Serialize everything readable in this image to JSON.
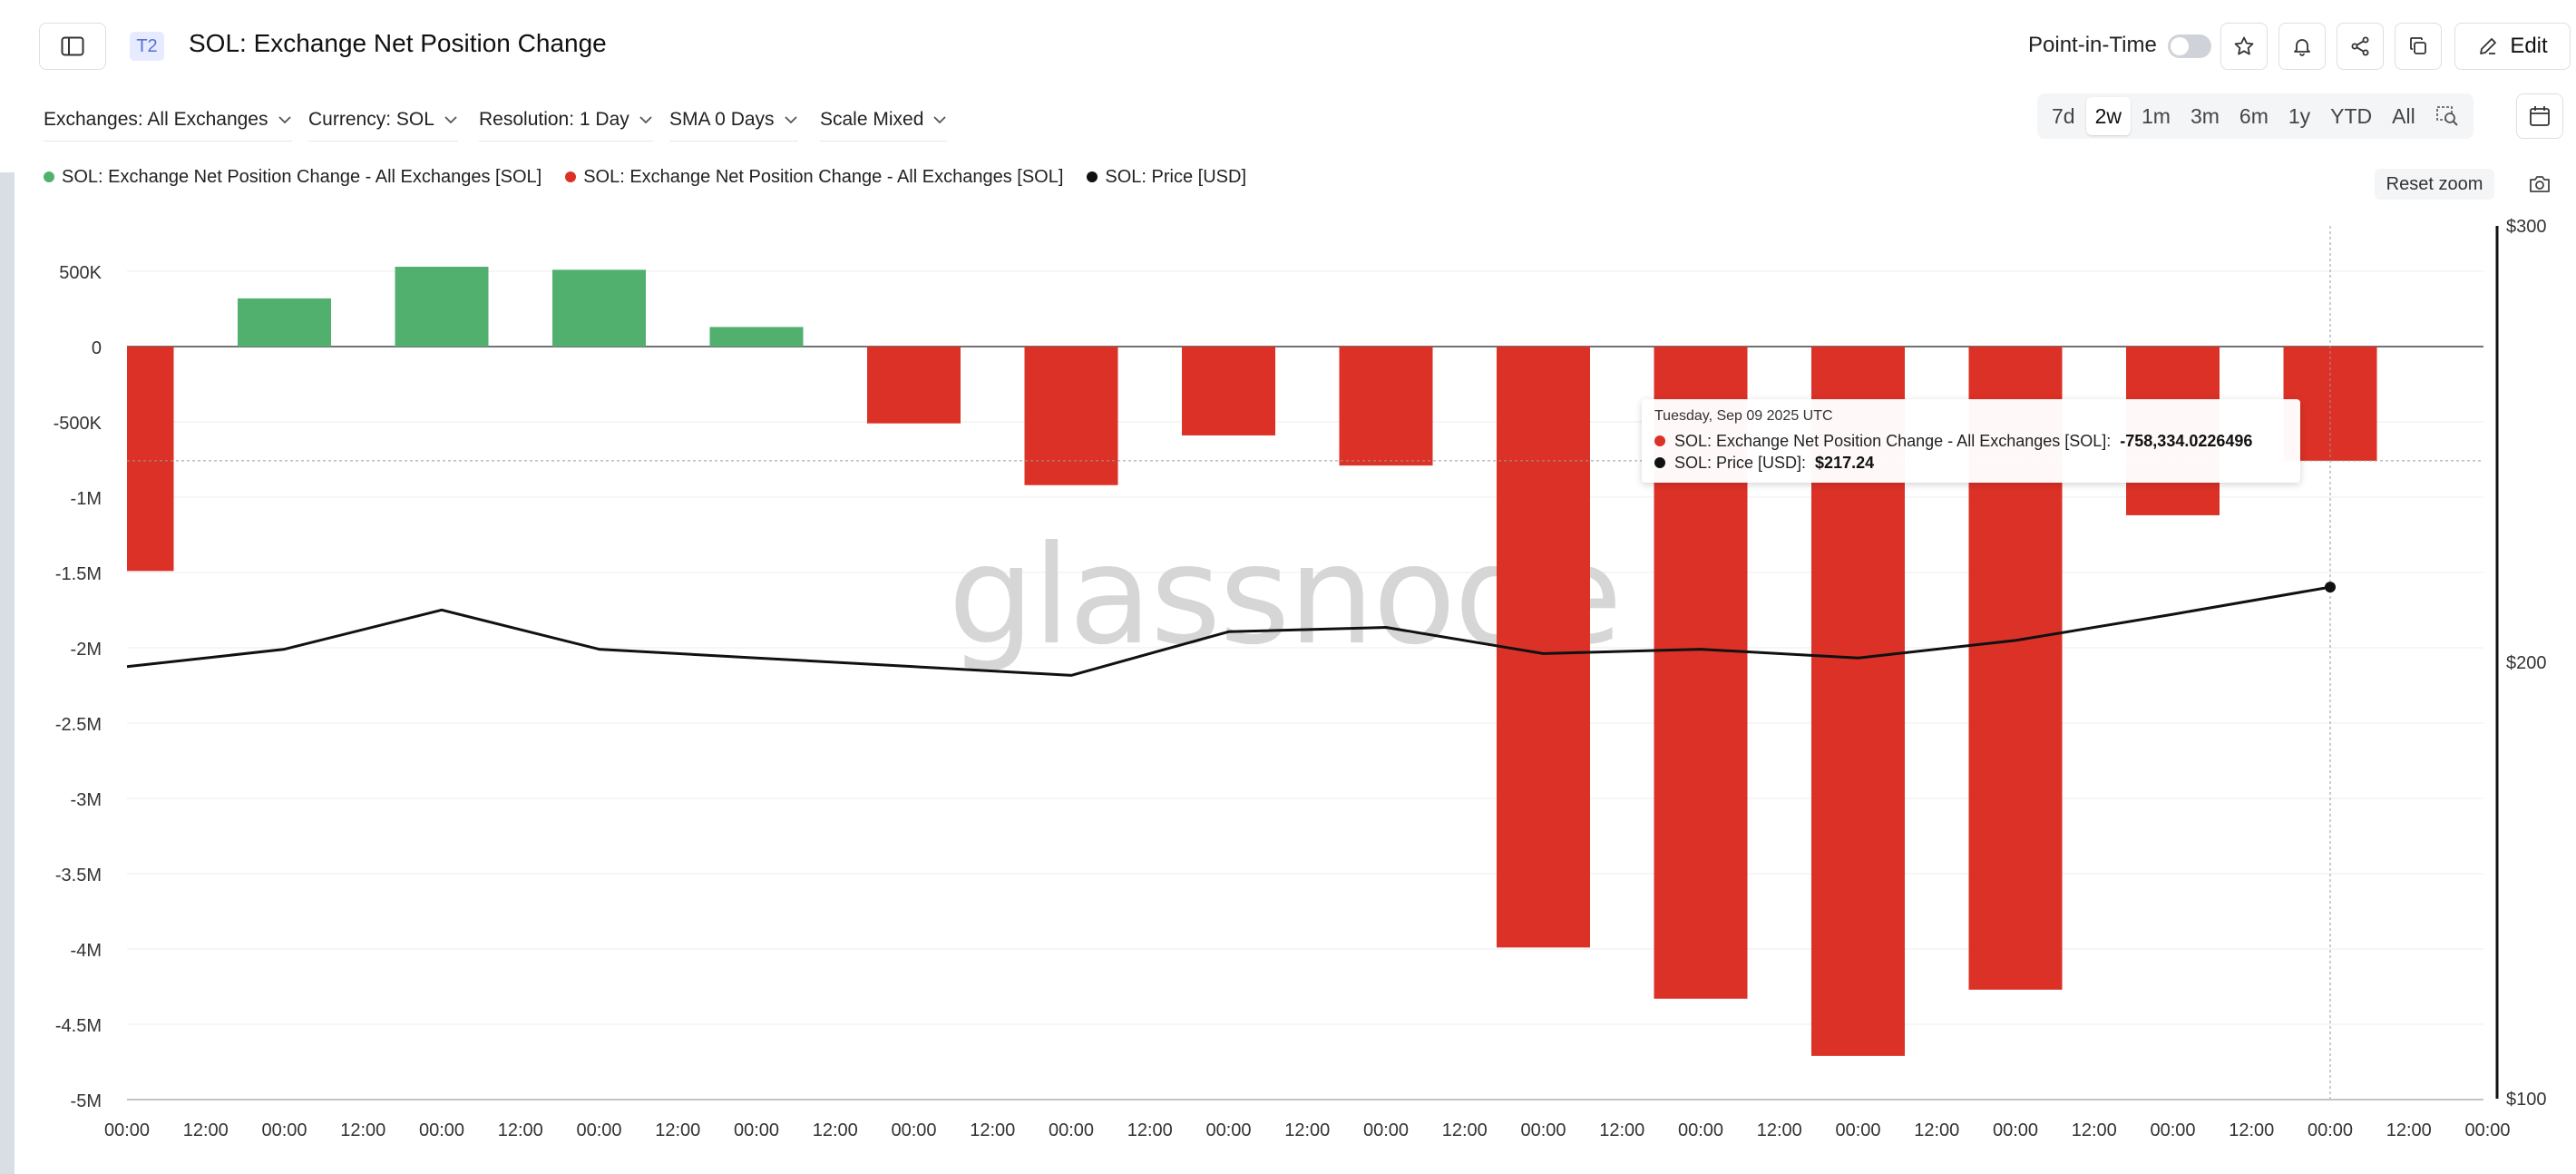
{
  "header": {
    "tier_badge": "T2",
    "title": "SOL: Exchange Net Position Change",
    "point_in_time_label": "Point-in-Time",
    "point_in_time_on": false,
    "edit_label": "Edit"
  },
  "toolbar": {
    "exchanges": "Exchanges: All Exchanges",
    "currency": "Currency: SOL",
    "resolution": "Resolution: 1 Day",
    "sma": "SMA 0 Days",
    "scale": "Scale Mixed"
  },
  "ranges": {
    "r7d": "7d",
    "r2w": "2w",
    "r1m": "1m",
    "r3m": "3m",
    "r6m": "6m",
    "r1y": "1y",
    "rytd": "YTD",
    "rall": "All",
    "active": "2w"
  },
  "legend": {
    "item1": "SOL: Exchange Net Position Change - All Exchanges [SOL]",
    "item2": "SOL: Exchange Net Position Change - All Exchanges [SOL]",
    "item3": "SOL: Price [USD]"
  },
  "reset_zoom": "Reset zoom",
  "tooltip": {
    "date": "Tuesday, Sep 09 2025 UTC",
    "row1_label": "SOL: Exchange Net Position Change - All Exchanges [SOL]:",
    "row1_value": "-758,334.0226496",
    "row2_label": "SOL: Price [USD]:",
    "row2_value": "$217.24"
  },
  "colors": {
    "positive": "#52b06f",
    "negative": "#dc3126",
    "price": "#111111",
    "grid": "#ececec"
  },
  "chart_data": {
    "type": "bar",
    "watermark": "glassnode",
    "x_tick_labels": [
      "00:00",
      "12:00",
      "00:00",
      "12:00",
      "00:00",
      "12:00",
      "00:00",
      "12:00",
      "00:00",
      "12:00",
      "00:00",
      "12:00",
      "00:00",
      "12:00",
      "00:00",
      "12:00",
      "00:00",
      "12:00",
      "00:00",
      "12:00",
      "00:00",
      "12:00",
      "00:00",
      "12:00",
      "00:00",
      "12:00",
      "00:00",
      "12:00",
      "00:00",
      "12:00",
      "00:00"
    ],
    "y_left": {
      "ticks": [
        500000,
        0,
        -500000,
        -1000000,
        -1500000,
        -2000000,
        -2500000,
        -3000000,
        -3500000,
        -4000000,
        -4500000,
        -5000000
      ],
      "tick_labels": [
        "500K",
        "0",
        "-500K",
        "-1M",
        "-1.5M",
        "-2M",
        "-2.5M",
        "-3M",
        "-3.5M",
        "-4M",
        "-4.5M",
        "-5M"
      ],
      "range": [
        -5000000,
        800000
      ]
    },
    "y_right": {
      "tick_labels": [
        "$300",
        "$200",
        "$100"
      ],
      "ticks": [
        300,
        200,
        100
      ],
      "range": [
        100,
        300
      ]
    },
    "series": [
      {
        "name": "SOL: Exchange Net Position Change - All Exchanges [SOL]",
        "values": [
          -1490000,
          320000,
          530000,
          510000,
          130000,
          -510000,
          -920000,
          -590000,
          -790000,
          -3990000,
          -4330000,
          -4710000,
          -4270000,
          -1120000,
          -758334.0226496
        ]
      },
      {
        "name": "SOL: Price [USD]",
        "values": [
          199,
          203,
          212,
          203,
          201,
          199,
          197,
          207,
          208,
          202,
          203,
          201,
          205,
          211,
          217.24
        ]
      }
    ]
  }
}
